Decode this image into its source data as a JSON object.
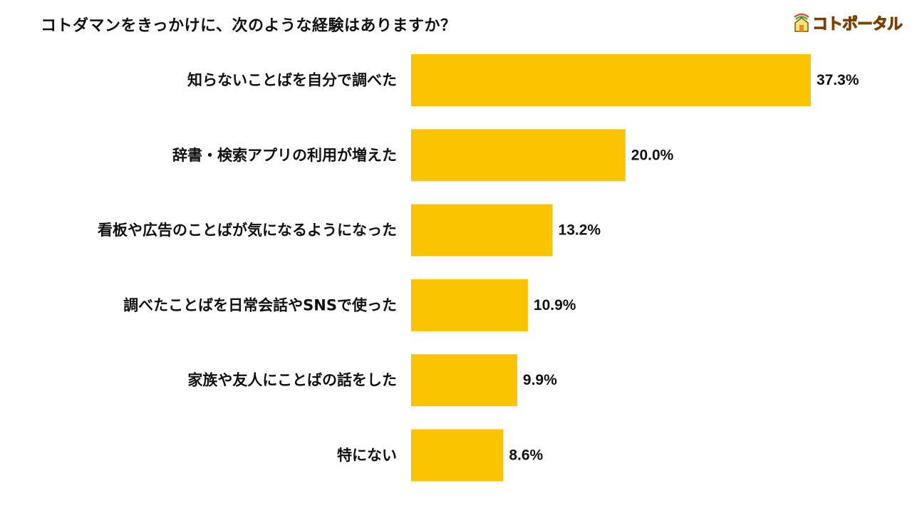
{
  "title": "コトダマンをきっかけに、次のような経験はありますか？",
  "logo": {
    "icon": "house-icon",
    "text": "コトポータル"
  },
  "colors": {
    "bar": "#FBC400",
    "text": "#111111",
    "logo": "#F08A1C"
  },
  "chart_data": {
    "type": "bar",
    "orientation": "horizontal",
    "title": "コトダマンをきっかけに、次のような経験はありますか？",
    "categories": [
      "知らないことばを自分で調べた",
      "辞書・検索アプリの利用が増えた",
      "看板や広告のことばが気になるようになった",
      "調べたことばを日常会話やSNSで使った",
      "家族や友人にことばの話をした",
      "特にない"
    ],
    "values": [
      37.3,
      20.0,
      13.2,
      10.9,
      9.9,
      8.6
    ],
    "value_labels": [
      "37.3%",
      "20.0%",
      "13.2%",
      "10.9%",
      "9.9%",
      "8.6%"
    ],
    "unit": "%",
    "xlabel": "",
    "ylabel": "",
    "grid": false,
    "legend": "none"
  }
}
